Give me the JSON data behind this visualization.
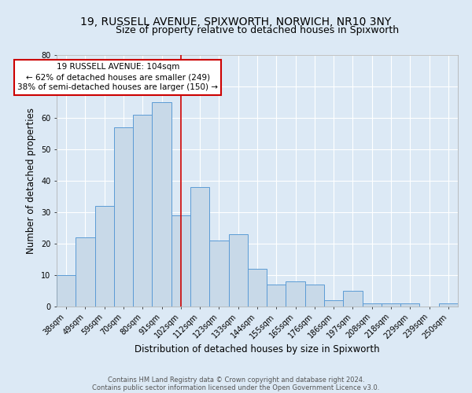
{
  "title_line1": "19, RUSSELL AVENUE, SPIXWORTH, NORWICH, NR10 3NY",
  "title_line2": "Size of property relative to detached houses in Spixworth",
  "xlabel": "Distribution of detached houses by size in Spixworth",
  "ylabel": "Number of detached properties",
  "categories": [
    "38sqm",
    "49sqm",
    "59sqm",
    "70sqm",
    "80sqm",
    "91sqm",
    "102sqm",
    "112sqm",
    "123sqm",
    "133sqm",
    "144sqm",
    "155sqm",
    "165sqm",
    "176sqm",
    "186sqm",
    "197sqm",
    "208sqm",
    "218sqm",
    "229sqm",
    "239sqm",
    "250sqm"
  ],
  "heights": [
    10,
    22,
    32,
    57,
    61,
    65,
    29,
    38,
    21,
    23,
    12,
    7,
    8,
    7,
    2,
    5,
    1,
    1,
    1,
    0,
    1
  ],
  "bar_color": "#c8d9e8",
  "bar_edge_color": "#5b9bd5",
  "vline_x": 6.0,
  "vline_color": "#cc0000",
  "annotation_text": "19 RUSSELL AVENUE: 104sqm\n← 62% of detached houses are smaller (249)\n38% of semi-detached houses are larger (150) →",
  "annotation_box_color": "#cc0000",
  "annotation_box_fill": "#ffffff",
  "ylim": [
    0,
    80
  ],
  "yticks": [
    0,
    10,
    20,
    30,
    40,
    50,
    60,
    70,
    80
  ],
  "footer_line1": "Contains HM Land Registry data © Crown copyright and database right 2024.",
  "footer_line2": "Contains public sector information licensed under the Open Government Licence v3.0.",
  "background_color": "#dce9f5",
  "plot_bg_color": "#dce9f5",
  "grid_color": "#ffffff",
  "title_fontsize": 10,
  "subtitle_fontsize": 9,
  "tick_fontsize": 7,
  "ylabel_fontsize": 8.5,
  "xlabel_fontsize": 8.5,
  "footer_fontsize": 6,
  "annotation_fontsize": 7.5
}
